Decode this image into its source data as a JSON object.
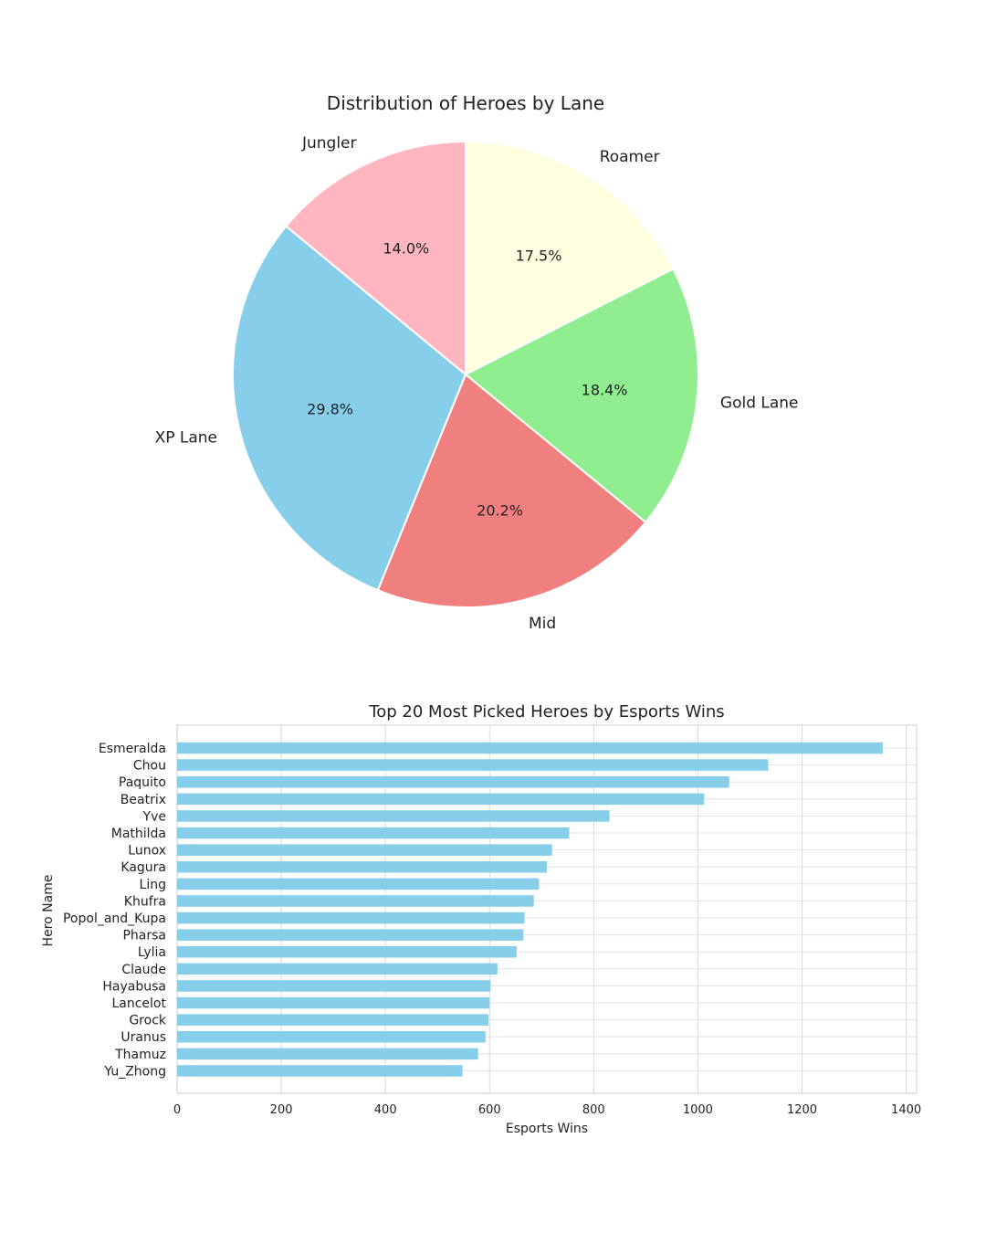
{
  "charts": [
    {
      "type": "pie",
      "title": "Distribution of Heroes by Lane",
      "slices": [
        {
          "label": "Roamer",
          "value": 17.5,
          "pct_label": "17.5%",
          "color": "#ffffe0"
        },
        {
          "label": "Gold Lane",
          "value": 18.4,
          "pct_label": "18.4%",
          "color": "#90ee90"
        },
        {
          "label": "Mid",
          "value": 20.2,
          "pct_label": "20.2%",
          "color": "#f08080"
        },
        {
          "label": "XP Lane",
          "value": 29.8,
          "pct_label": "29.8%",
          "color": "#87ceeb"
        },
        {
          "label": "Jungler",
          "value": 14.0,
          "pct_label": "14.0%",
          "color": "#ffb6c1"
        }
      ]
    },
    {
      "type": "bar",
      "orientation": "horizontal",
      "title": "Top 20 Most Picked Heroes by Esports Wins",
      "xlabel": "Esports Wins",
      "ylabel": "Hero Name",
      "xlim": [
        0,
        1420
      ],
      "xticks": [
        0,
        200,
        400,
        600,
        800,
        1000,
        1200,
        1400
      ],
      "bar_color": "#87ceeb",
      "grid": true,
      "categories": [
        "Esmeralda",
        "Chou",
        "Paquito",
        "Beatrix",
        "Yve",
        "Mathilda",
        "Lunox",
        "Kagura",
        "Ling",
        "Khufra",
        "Popol_and_Kupa",
        "Pharsa",
        "Lylia",
        "Claude",
        "Hayabusa",
        "Lancelot",
        "Grock",
        "Uranus",
        "Thamuz",
        "Yu_Zhong"
      ],
      "values": [
        1355,
        1135,
        1060,
        1012,
        830,
        753,
        720,
        710,
        695,
        685,
        667,
        665,
        652,
        615,
        602,
        600,
        598,
        592,
        578,
        548
      ]
    }
  ]
}
